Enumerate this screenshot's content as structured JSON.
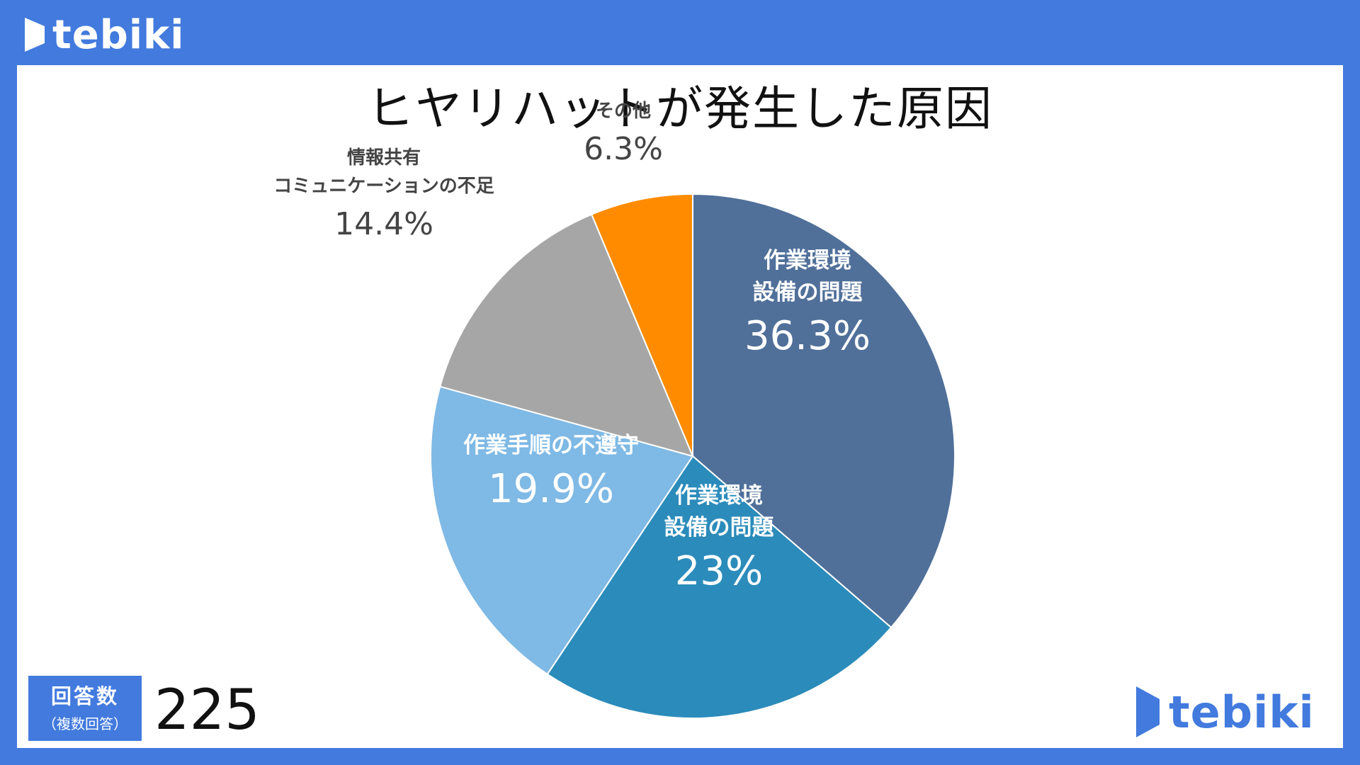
{
  "header": {
    "brand": "tebiki"
  },
  "footer": {
    "brand": "tebiki",
    "count_label": "回答数",
    "count_sub": "（複数回答）",
    "count_value": "225"
  },
  "chart_data": {
    "type": "pie",
    "title": "ヒヤリハットが発生した原因",
    "slices": [
      {
        "label": "作業環境\n設備の問題",
        "value": 36.3,
        "display": "36.3%",
        "color": "#50709a",
        "label_pos": "inside"
      },
      {
        "label": "作業環境\n設備の問題",
        "value": 23,
        "display": "23%",
        "color": "#2b8bbb",
        "label_pos": "inside"
      },
      {
        "label": "作業手順の不遵守",
        "value": 19.9,
        "display": "19.9%",
        "color": "#7fb9e5",
        "label_pos": "inside"
      },
      {
        "label": "情報共有\nコミュニケーションの不足",
        "value": 14.4,
        "display": "14.4%",
        "color": "#a6a6a6",
        "label_pos": "outside"
      },
      {
        "label": "その他",
        "value": 6.3,
        "display": "6.3%",
        "color": "#ff8c00",
        "label_pos": "outside"
      }
    ]
  }
}
